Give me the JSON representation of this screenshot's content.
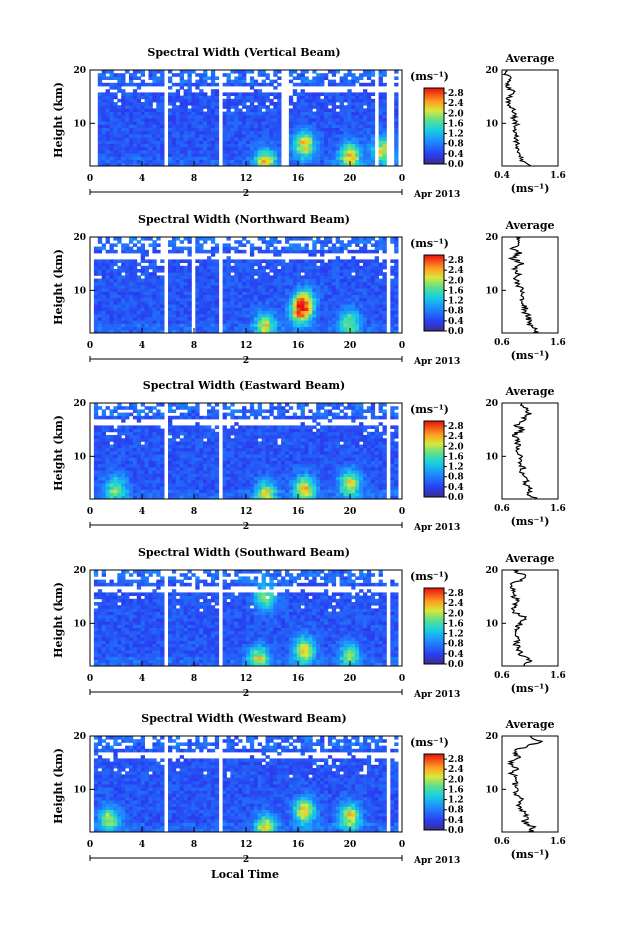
{
  "figure": {
    "x_axis_title": "Local Time",
    "y_axis_title": "Height (km)",
    "date_label": "Apr 2013",
    "day_marker": "2",
    "colorbar_unit": "(ms⁻¹)",
    "avg_title": "Average",
    "avg_xlabel": "(ms⁻¹)"
  },
  "chart_data": [
    {
      "type": "heatmap",
      "title": "Spectral Width (Vertical Beam)",
      "x_ticks": [
        "0",
        "4",
        "8",
        "12",
        "16",
        "20",
        "0"
      ],
      "y_ticks": [
        "20",
        "10"
      ],
      "xlim": [
        0,
        24
      ],
      "ylim": [
        2,
        20
      ],
      "colorbar_ticks": [
        "2.8",
        "2.4",
        "2.0",
        "1.6",
        "1.2",
        "0.8",
        "0.4",
        "0.0"
      ],
      "colorbar_range": [
        0,
        3.0
      ],
      "avg_ticks": [
        "0.4",
        "1.6"
      ],
      "avg_xlim": [
        0.4,
        1.6
      ],
      "avg_profile": {
        "height_km": [
          2,
          3,
          4,
          5,
          6,
          7,
          8,
          9,
          10,
          11,
          12,
          13,
          14,
          15,
          16,
          17,
          18,
          19,
          20
        ],
        "width_ms": [
          1.0,
          0.85,
          0.75,
          0.72,
          0.72,
          0.68,
          0.7,
          0.7,
          0.7,
          0.65,
          0.68,
          0.6,
          0.55,
          0.55,
          0.62,
          0.5,
          0.58,
          0.5,
          0.5
        ]
      },
      "hot_spots": [
        {
          "t": 16.5,
          "h": 6,
          "v": 2.6
        },
        {
          "t": 20,
          "h": 4,
          "v": 2.5
        },
        {
          "t": 13.5,
          "h": 3,
          "v": 2.4
        },
        {
          "t": 22.5,
          "h": 5,
          "v": 2.4
        }
      ],
      "gaps": [
        [
          0,
          0.5
        ],
        [
          5.8,
          6.1
        ],
        [
          9.8,
          10.2
        ],
        [
          14.8,
          15.2
        ],
        [
          21.8,
          22.1
        ],
        [
          22.9,
          23.3
        ],
        [
          23.6,
          24
        ]
      ]
    },
    {
      "type": "heatmap",
      "title": "Spectral Width (Northward Beam)",
      "x_ticks": [
        "0",
        "4",
        "8",
        "12",
        "16",
        "20",
        "0"
      ],
      "y_ticks": [
        "20",
        "10"
      ],
      "xlim": [
        0,
        24
      ],
      "ylim": [
        2,
        20
      ],
      "colorbar_ticks": [
        "2.8",
        "2.4",
        "2.0",
        "1.6",
        "1.2",
        "0.8",
        "0.4",
        "0.0"
      ],
      "colorbar_range": [
        0,
        3.0
      ],
      "avg_ticks": [
        "0.6",
        "1.6"
      ],
      "avg_xlim": [
        0.6,
        1.6
      ],
      "avg_profile": {
        "height_km": [
          2,
          3,
          4,
          5,
          6,
          7,
          8,
          9,
          10,
          11,
          12,
          13,
          14,
          15,
          16,
          17,
          18,
          19,
          20
        ],
        "width_ms": [
          1.2,
          1.15,
          1.05,
          1.1,
          1.0,
          1.02,
          0.95,
          0.98,
          0.95,
          0.9,
          0.85,
          0.92,
          0.82,
          0.95,
          0.8,
          0.9,
          0.78,
          0.95,
          0.85
        ]
      },
      "hot_spots": [
        {
          "t": 16.2,
          "h": 6,
          "v": 2.6
        },
        {
          "t": 16.5,
          "h": 8,
          "v": 2.3
        },
        {
          "t": 13.5,
          "h": 3.5,
          "v": 2.3
        },
        {
          "t": 20,
          "h": 4,
          "v": 2.0
        }
      ],
      "gaps": [
        [
          0,
          0.4
        ],
        [
          5.8,
          6.0
        ],
        [
          7.8,
          8.1
        ],
        [
          9.8,
          10.2
        ],
        [
          22.8,
          23.2
        ],
        [
          23.6,
          24
        ]
      ]
    },
    {
      "type": "heatmap",
      "title": "Spectral Width (Eastward Beam)",
      "x_ticks": [
        "0",
        "4",
        "8",
        "12",
        "16",
        "20",
        "0"
      ],
      "y_ticks": [
        "20",
        "10"
      ],
      "xlim": [
        0,
        24
      ],
      "ylim": [
        2,
        20
      ],
      "colorbar_ticks": [
        "2.8",
        "2.4",
        "2.0",
        "1.6",
        "1.2",
        "0.8",
        "0.4",
        "0.0"
      ],
      "colorbar_range": [
        0,
        3.0
      ],
      "avg_ticks": [
        "0.6",
        "1.6"
      ],
      "avg_xlim": [
        0.6,
        1.6
      ],
      "avg_profile": {
        "height_km": [
          2,
          3,
          4,
          5,
          6,
          7,
          8,
          9,
          10,
          11,
          12,
          13,
          14,
          15,
          16,
          17,
          18,
          19,
          20
        ],
        "width_ms": [
          1.2,
          1.05,
          1.15,
          1.0,
          1.05,
          0.95,
          0.98,
          0.9,
          0.95,
          0.88,
          0.9,
          0.85,
          0.82,
          0.95,
          0.85,
          1.0,
          1.1,
          1.0,
          0.95
        ]
      },
      "hot_spots": [
        {
          "t": 16.5,
          "h": 4,
          "v": 2.6
        },
        {
          "t": 20,
          "h": 5,
          "v": 2.4
        },
        {
          "t": 13.5,
          "h": 3,
          "v": 2.3
        },
        {
          "t": 2,
          "h": 4,
          "v": 2.0
        }
      ],
      "gaps": [
        [
          0,
          0.3
        ],
        [
          5.8,
          6.1
        ],
        [
          9.9,
          10.2
        ],
        [
          22.8,
          23.0
        ],
        [
          23.6,
          24
        ]
      ]
    },
    {
      "type": "heatmap",
      "title": "Spectral Width (Southward Beam)",
      "x_ticks": [
        "0",
        "4",
        "8",
        "12",
        "16",
        "20",
        "0"
      ],
      "y_ticks": [
        "20",
        "10"
      ],
      "xlim": [
        0,
        24
      ],
      "ylim": [
        2,
        20
      ],
      "colorbar_ticks": [
        "2.8",
        "2.4",
        "2.0",
        "1.6",
        "1.2",
        "0.8",
        "0.4",
        "0.0"
      ],
      "colorbar_range": [
        0,
        3.0
      ],
      "avg_ticks": [
        "0.6",
        "1.6"
      ],
      "avg_xlim": [
        0.6,
        1.6
      ],
      "avg_profile": {
        "height_km": [
          2,
          3,
          4,
          5,
          6,
          7,
          8,
          9,
          10,
          11,
          12,
          13,
          14,
          15,
          16,
          17,
          18,
          19,
          20
        ],
        "width_ms": [
          1.0,
          1.1,
          0.95,
          0.9,
          0.85,
          0.9,
          0.8,
          0.85,
          0.95,
          1.0,
          0.85,
          0.8,
          0.9,
          0.8,
          0.85,
          0.75,
          0.9,
          1.0,
          0.8
        ]
      },
      "hot_spots": [
        {
          "t": 16.5,
          "h": 5,
          "v": 2.5
        },
        {
          "t": 13.5,
          "h": 15,
          "v": 2.2
        },
        {
          "t": 20,
          "h": 4,
          "v": 2.0
        },
        {
          "t": 13,
          "h": 3.5,
          "v": 2.2
        }
      ],
      "gaps": [
        [
          0,
          0.3
        ],
        [
          5.8,
          6.1
        ],
        [
          9.8,
          10.2
        ],
        [
          22.8,
          23.2
        ],
        [
          23.6,
          24
        ]
      ]
    },
    {
      "type": "heatmap",
      "title": "Spectral Width (Westward Beam)",
      "x_ticks": [
        "0",
        "4",
        "8",
        "12",
        "16",
        "20",
        "0"
      ],
      "y_ticks": [
        "20",
        "10"
      ],
      "xlim": [
        0,
        24
      ],
      "ylim": [
        2,
        20
      ],
      "colorbar_ticks": [
        "2.8",
        "2.4",
        "2.0",
        "1.6",
        "1.2",
        "0.8",
        "0.4",
        "0.0"
      ],
      "colorbar_range": [
        0,
        3.0
      ],
      "avg_ticks": [
        "0.6",
        "1.6"
      ],
      "avg_xlim": [
        0.6,
        1.6
      ],
      "avg_profile": {
        "height_km": [
          2,
          3,
          4,
          5,
          6,
          7,
          8,
          9,
          10,
          11,
          12,
          13,
          14,
          15,
          16,
          17,
          18,
          19,
          20
        ],
        "width_ms": [
          1.1,
          1.15,
          1.0,
          1.05,
          0.95,
          0.9,
          0.95,
          0.85,
          0.9,
          0.82,
          0.85,
          0.78,
          0.85,
          0.75,
          0.9,
          0.8,
          1.0,
          1.3,
          1.1
        ]
      },
      "hot_spots": [
        {
          "t": 16.5,
          "h": 6,
          "v": 2.6
        },
        {
          "t": 20,
          "h": 5,
          "v": 2.5
        },
        {
          "t": 13.5,
          "h": 3,
          "v": 2.3
        },
        {
          "t": 1.5,
          "h": 4.5,
          "v": 2.1
        }
      ],
      "gaps": [
        [
          0,
          0.3
        ],
        [
          5.8,
          6.1
        ],
        [
          9.8,
          10.2
        ],
        [
          22.8,
          23.2
        ],
        [
          23.6,
          24
        ]
      ]
    }
  ]
}
